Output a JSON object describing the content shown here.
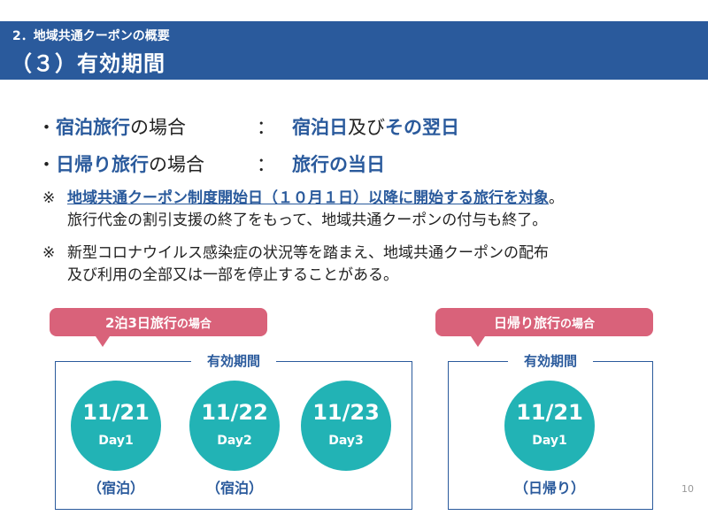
{
  "header": {
    "section": "2．地域共通クーポンの概要",
    "title": "（３）有効期間"
  },
  "rules": [
    {
      "bullet": "・",
      "label_highlight": "宿泊旅行",
      "label_rest": "の場合",
      "sep": "：",
      "value_parts": [
        {
          "text": "宿泊日",
          "hl": true
        },
        {
          "text": "及び",
          "hl": false
        },
        {
          "text": "その翌日",
          "hl": true
        }
      ]
    },
    {
      "bullet": "・",
      "label_highlight": "日帰り旅行",
      "label_rest": "の場合",
      "sep": "：",
      "value_parts": [
        {
          "text": "旅行の当日",
          "hl": true
        }
      ]
    }
  ],
  "notes": [
    {
      "mark": "※",
      "line1_link": "地域共通クーポン制度開始日（１０月１日）以降に開始する旅行を対象",
      "line1_end": "。",
      "line2": "旅行代金の割引支援の終了をもって、地域共通クーポンの付与も終了。"
    },
    {
      "mark": "※",
      "line1": "新型コロナウイルス感染症の状況等を踏まえ、地域共通クーポンの配布",
      "line2": "及び利用の全部又は一部を停止することがある。"
    }
  ],
  "overnight": {
    "callout_main": "2泊3日旅行",
    "callout_small": "の場合",
    "period_label": "有効期間",
    "days": [
      {
        "date": "11/21",
        "day": "Day1",
        "label": "（宿泊）"
      },
      {
        "date": "11/22",
        "day": "Day2",
        "label": "（宿泊）"
      },
      {
        "date": "11/23",
        "day": "Day3",
        "label": ""
      }
    ]
  },
  "daytrip": {
    "callout_main": "日帰り旅行",
    "callout_small": "の場合",
    "period_label": "有効期間",
    "days": [
      {
        "date": "11/21",
        "day": "Day1",
        "label": "（日帰り）"
      }
    ]
  },
  "page_number": "10",
  "colors": {
    "header_bg": "#2a5a9c",
    "accent_blue": "#2a5a9c",
    "callout_pink": "#d9627a",
    "circle_teal": "#22b3b5"
  }
}
